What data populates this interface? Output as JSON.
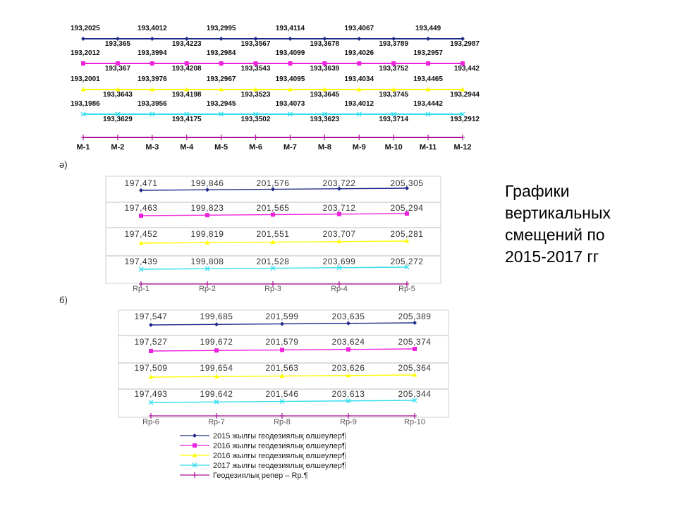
{
  "slide": {
    "title_lines": [
      "Графики",
      "вертикальных",
      "смещений по",
      "2015-2017 гг"
    ]
  },
  "colors": {
    "s2015": "#1f2a8a",
    "s2016a": "#ee22dd",
    "s2016b": "#ffff00",
    "s2017": "#33ddee",
    "reper": "#aa1199"
  },
  "chart_data": [
    {
      "type": "line",
      "label": "ә)",
      "categories": [
        "M-1",
        "M-2",
        "M-3",
        "M-4",
        "M-5",
        "M-6",
        "M-7",
        "M-8",
        "M-9",
        "M-10",
        "M-11",
        "M-12"
      ],
      "series": [
        {
          "values": [
            "193,2025",
            "193,365",
            "193,4012",
            "193,4223",
            "193,2995",
            "193,3567",
            "193,4114",
            "193,3678",
            "193,4067",
            "193,3789",
            "193,449",
            "193,2987"
          ]
        },
        {
          "values": [
            "193,2012",
            "193,367",
            "193,3994",
            "193,4208",
            "193,2984",
            "193,3543",
            "193,4099",
            "193,3639",
            "193,4026",
            "193,3752",
            "193,2957",
            "193,442"
          ]
        },
        {
          "values": [
            "193,2001",
            "193,3643",
            "193,3976",
            "193,4198",
            "193,2967",
            "193,3523",
            "193,4095",
            "193,3645",
            "193,4034",
            "193,3745",
            "193,4465",
            "193,2944"
          ]
        },
        {
          "values": [
            "193,1986",
            "193,3629",
            "193,3956",
            "193,4175",
            "193,2945",
            "193,3502",
            "193,4073",
            "193,3623",
            "193,4012",
            "193,3714",
            "193,4442",
            "193,2912"
          ]
        }
      ]
    },
    {
      "type": "line",
      "label": "б)",
      "categories": [
        "Rp-1",
        "Rp-2",
        "Rp-3",
        "Rp-4",
        "Rp-5"
      ],
      "series": [
        {
          "values": [
            "197,471",
            "199,846",
            "201,576",
            "203,722",
            "205,305"
          ]
        },
        {
          "values": [
            "197,463",
            "199,823",
            "201,565",
            "203,712",
            "205,294"
          ]
        },
        {
          "values": [
            "197,452",
            "199,819",
            "201,551",
            "203,707",
            "205,281"
          ]
        },
        {
          "values": [
            "197,439",
            "199,808",
            "201,528",
            "203,699",
            "205,272"
          ]
        }
      ]
    },
    {
      "type": "line",
      "categories": [
        "Rp-6",
        "Rp-7",
        "Rp-8",
        "Rp-9",
        "Rp-10"
      ],
      "series": [
        {
          "values": [
            "197,547",
            "199,685",
            "201,599",
            "203,635",
            "205,389"
          ]
        },
        {
          "values": [
            "197,527",
            "199,672",
            "201,579",
            "203,624",
            "205,374"
          ]
        },
        {
          "values": [
            "197,509",
            "199,654",
            "201,563",
            "203,626",
            "205,364"
          ]
        },
        {
          "values": [
            "197,493",
            "199,642",
            "201,546",
            "203,613",
            "205,344"
          ]
        }
      ]
    }
  ],
  "legend": [
    {
      "text": "2015 жылғы геодезиялық өлшеулер¶",
      "marker": "diamond",
      "color_key": "s2015"
    },
    {
      "text": "2016 жылғы геодезиялық өлшеулер¶",
      "marker": "square",
      "color_key": "s2016a"
    },
    {
      "text": "2016 жылғы геодезиялық өлшеулер¶",
      "marker": "triangle",
      "color_key": "s2016b"
    },
    {
      "text": "2017 жылғы геодезиялық өлшеулер¶",
      "marker": "x",
      "color_key": "s2017"
    },
    {
      "text": "Геодезиялық репер – Rp.¶",
      "marker": "plus",
      "color_key": "reper"
    }
  ]
}
